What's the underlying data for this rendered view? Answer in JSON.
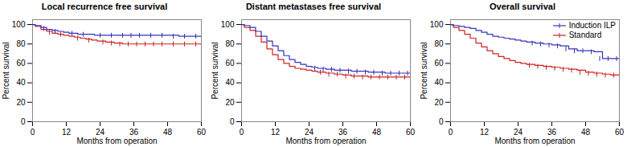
{
  "chart_data": [
    {
      "type": "step",
      "title": "Local recurrence free survival",
      "xlabel": "Months from operation",
      "ylabel": "Percent survival",
      "xlim": [
        0,
        60
      ],
      "ylim": [
        0,
        105
      ],
      "xticks": [
        0,
        12,
        24,
        36,
        48,
        60
      ],
      "yticks": [
        0,
        20,
        40,
        60,
        80,
        100
      ],
      "grid": false,
      "series": [
        {
          "name": "Induction ILP",
          "color": "#3333bb",
          "x": [
            0,
            1,
            3,
            5,
            7,
            9,
            11,
            13,
            16,
            19,
            22,
            26,
            30,
            36,
            40,
            44,
            48,
            52,
            56,
            60
          ],
          "values": [
            100,
            99,
            97,
            95,
            94,
            93,
            92,
            91,
            90,
            90,
            89,
            89,
            89,
            89,
            89,
            89,
            89,
            88,
            88,
            88
          ],
          "censored_x": [
            4,
            8,
            14,
            18,
            24,
            28,
            32,
            35,
            38,
            42,
            46,
            50,
            54,
            58
          ],
          "censored_values": [
            96,
            93,
            91,
            90,
            89,
            89,
            89,
            89,
            89,
            89,
            89,
            88,
            88,
            88
          ]
        },
        {
          "name": "Standard",
          "color": "#cc2222",
          "x": [
            0,
            1,
            3,
            5,
            7,
            9,
            11,
            13,
            15,
            17,
            19,
            21,
            23,
            26,
            29,
            32,
            35,
            38,
            41,
            44,
            48,
            52,
            56,
            60
          ],
          "values": [
            100,
            98,
            95,
            93,
            91,
            90,
            89,
            88,
            87,
            86,
            85,
            84,
            83,
            82,
            81,
            80,
            80,
            80,
            80,
            80,
            80,
            80,
            80,
            80
          ],
          "censored_x": [
            6,
            10,
            16,
            20,
            25,
            28,
            31,
            34,
            37,
            40,
            43,
            46,
            50,
            54,
            58
          ],
          "censored_values": [
            92,
            90,
            86,
            84,
            82,
            81,
            80,
            80,
            80,
            80,
            80,
            80,
            80,
            80,
            80
          ]
        }
      ]
    },
    {
      "type": "step",
      "title": "Distant metastases free survival",
      "xlabel": "Months from operation",
      "ylabel": "Percent survival",
      "xlim": [
        0,
        60
      ],
      "ylim": [
        0,
        105
      ],
      "xticks": [
        0,
        12,
        24,
        36,
        48,
        60
      ],
      "yticks": [
        0,
        20,
        40,
        60,
        80,
        100
      ],
      "grid": false,
      "series": [
        {
          "name": "Induction ILP",
          "color": "#3333bb",
          "x": [
            0,
            1,
            3,
            5,
            7,
            9,
            11,
            13,
            15,
            17,
            19,
            21,
            23,
            25,
            27,
            30,
            33,
            36,
            39,
            42,
            45,
            48,
            51,
            54,
            57,
            60
          ],
          "values": [
            100,
            99,
            97,
            93,
            88,
            83,
            78,
            73,
            68,
            64,
            61,
            59,
            57,
            56,
            55,
            54,
            53,
            53,
            52,
            52,
            51,
            51,
            50,
            50,
            50,
            50
          ],
          "censored_x": [
            26,
            29,
            32,
            35,
            38,
            41,
            44,
            47,
            50,
            53,
            56,
            59
          ],
          "censored_values": [
            55,
            54,
            54,
            53,
            52,
            52,
            51,
            51,
            50,
            50,
            50,
            50
          ]
        },
        {
          "name": "Standard",
          "color": "#cc2222",
          "x": [
            0,
            1,
            3,
            5,
            7,
            9,
            11,
            13,
            15,
            17,
            19,
            21,
            23,
            25,
            27,
            30,
            33,
            36,
            39,
            42,
            45,
            48,
            51,
            54,
            57,
            60
          ],
          "values": [
            100,
            97,
            94,
            88,
            82,
            75,
            69,
            64,
            60,
            57,
            55,
            54,
            53,
            52,
            51,
            50,
            49,
            48,
            47,
            47,
            46,
            46,
            46,
            46,
            46,
            46
          ],
          "censored_x": [
            28,
            31,
            34,
            37,
            40,
            43,
            46,
            49,
            52,
            55,
            58
          ],
          "censored_values": [
            51,
            49,
            49,
            47,
            47,
            46,
            46,
            46,
            46,
            46,
            46
          ]
        }
      ]
    },
    {
      "type": "step",
      "title": "Overall survival",
      "xlabel": "Months from operation",
      "ylabel": "Percent survival",
      "xlim": [
        0,
        60
      ],
      "ylim": [
        0,
        105
      ],
      "xticks": [
        0,
        12,
        24,
        36,
        48,
        60
      ],
      "yticks": [
        0,
        20,
        40,
        60,
        80,
        100
      ],
      "grid": false,
      "legend": "upper right",
      "series": [
        {
          "name": "Induction ILP",
          "color": "#3333bb",
          "x": [
            0,
            1,
            3,
            5,
            7,
            9,
            11,
            13,
            15,
            17,
            19,
            21,
            23,
            25,
            27,
            30,
            33,
            36,
            39,
            42,
            45,
            48,
            51,
            54,
            57,
            60
          ],
          "values": [
            100,
            99,
            98,
            97,
            96,
            94,
            92,
            90,
            88,
            87,
            86,
            85,
            84,
            83,
            82,
            81,
            80,
            79,
            78,
            75,
            73,
            73,
            72,
            65,
            65,
            65
          ],
          "censored_x": [
            29,
            32,
            35,
            38,
            41,
            44,
            47,
            50,
            53,
            56,
            59
          ],
          "censored_values": [
            81,
            80,
            79,
            78,
            75,
            73,
            73,
            72,
            65,
            65,
            65
          ]
        },
        {
          "name": "Standard",
          "color": "#cc2222",
          "x": [
            0,
            1,
            3,
            5,
            7,
            9,
            11,
            13,
            15,
            17,
            19,
            21,
            23,
            25,
            27,
            30,
            33,
            36,
            39,
            42,
            45,
            48,
            51,
            54,
            57,
            60
          ],
          "values": [
            100,
            97,
            94,
            90,
            86,
            81,
            77,
            73,
            70,
            67,
            65,
            63,
            61,
            60,
            59,
            58,
            57,
            56,
            55,
            54,
            53,
            51,
            50,
            49,
            48,
            48
          ],
          "censored_x": [
            28,
            31,
            34,
            37,
            40,
            43,
            46,
            49,
            52,
            55,
            58
          ],
          "censored_values": [
            58,
            57,
            56,
            55,
            54,
            53,
            51,
            50,
            49,
            48,
            48
          ]
        }
      ]
    }
  ]
}
